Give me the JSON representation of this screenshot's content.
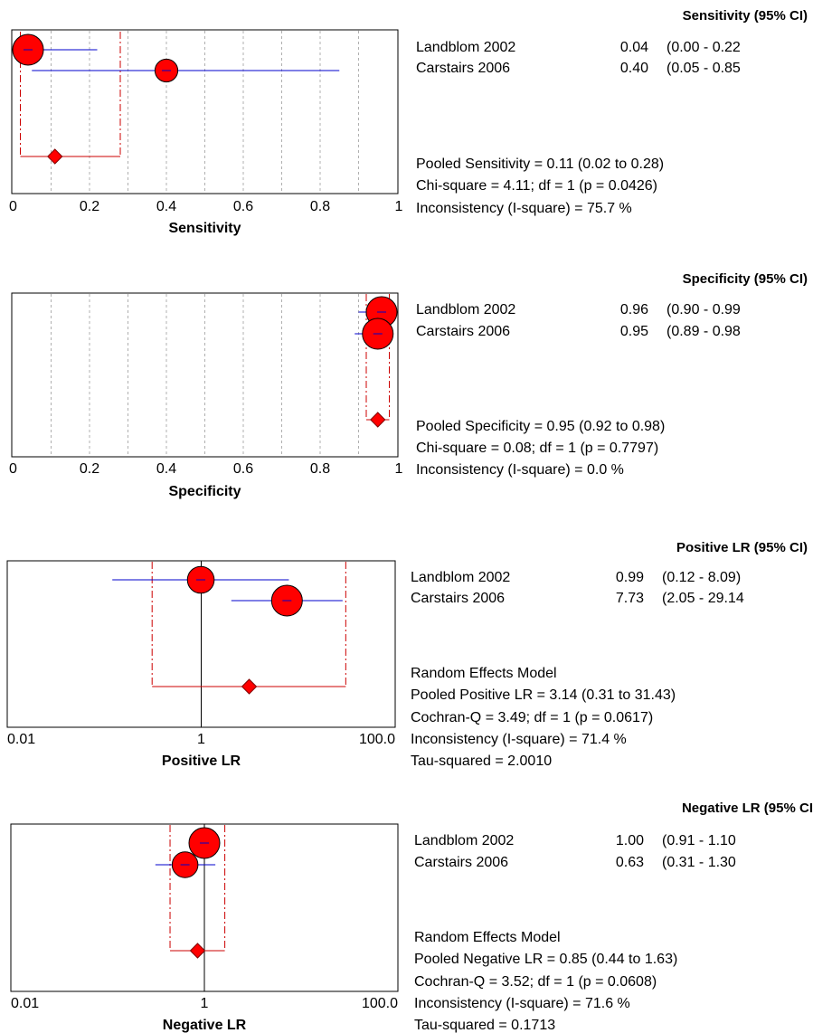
{
  "panels": [
    {
      "id": "sensitivity",
      "header": "Sensitivity (95% CI)",
      "studies": [
        {
          "name": "Landblom 2002",
          "value_text": "0.04",
          "ci_text": "(0.00 - 0.22"
        },
        {
          "name": "Carstairs 2006",
          "value_text": "0.40",
          "ci_text": "(0.05 - 0.85"
        }
      ],
      "summary_lines": [
        "Pooled Sensitivity = 0.11 (0.02 to 0.28)",
        "Chi-square = 4.11; df =  1 (p = 0.0426)",
        "Inconsistency (I-square) = 75.7 %"
      ]
    },
    {
      "id": "specificity",
      "header": "Specificity (95% CI)",
      "studies": [
        {
          "name": "Landblom 2002",
          "value_text": "0.96",
          "ci_text": "(0.90 - 0.99"
        },
        {
          "name": "Carstairs 2006",
          "value_text": "0.95",
          "ci_text": "(0.89 - 0.98"
        }
      ],
      "summary_lines": [
        "Pooled Specificity = 0.95 (0.92 to 0.98)",
        "Chi-square = 0.08; df =  1 (p = 0.7797)",
        "Inconsistency (I-square) = 0.0 %"
      ]
    },
    {
      "id": "positive-lr",
      "header": "Positive LR (95% CI)",
      "studies": [
        {
          "name": "Landblom 2002",
          "value_text": "0.99",
          "ci_text": "(0.12 - 8.09)"
        },
        {
          "name": "Carstairs 2006",
          "value_text": "7.73",
          "ci_text": "(2.05 - 29.14"
        }
      ],
      "summary_lines": [
        "Random Effects Model",
        "Pooled Positive LR = 3.14 (0.31 to 31.43)",
        "Cochran-Q = 3.49; df =  1 (p = 0.0617)",
        "Inconsistency (I-square) = 71.4 %",
        "Tau-squared = 2.0010"
      ]
    },
    {
      "id": "negative-lr",
      "header": "Negative LR (95% CI",
      "studies": [
        {
          "name": "Landblom 2002",
          "value_text": "1.00",
          "ci_text": "(0.91 - 1.10"
        },
        {
          "name": "Carstairs 2006",
          "value_text": "0.63",
          "ci_text": "(0.31 - 1.30"
        }
      ],
      "summary_lines": [
        "Random Effects Model",
        "Pooled Negative LR = 0.85 (0.44 to 1.63)",
        "Cochran-Q = 3.52; df =  1 (p = 0.0608)",
        "Inconsistency (I-square) = 71.6 %",
        "Tau-squared = 0.1713"
      ]
    }
  ],
  "colors": {
    "marker": "#ff0000",
    "ci_line": "#0000cc",
    "pooled": "#cc0000",
    "grid": "#b0b0b0"
  },
  "chart_data": [
    {
      "type": "forest",
      "xlabel": "Sensitivity",
      "xlim": [
        0,
        1
      ],
      "scale": "linear",
      "tick_labels": [
        "0",
        "0.2",
        "0.4",
        "0.6",
        "0.8",
        "1"
      ],
      "tick_values": [
        0,
        0.2,
        0.4,
        0.6,
        0.8,
        1
      ],
      "grid": true,
      "reference_line": null,
      "studies": [
        {
          "name": "Landblom 2002",
          "estimate": 0.04,
          "lower": 0.0,
          "upper": 0.22,
          "weight": 1.0
        },
        {
          "name": "Carstairs 2006",
          "estimate": 0.4,
          "lower": 0.05,
          "upper": 0.85,
          "weight": 0.6
        }
      ],
      "pooled": {
        "estimate": 0.11,
        "lower": 0.02,
        "upper": 0.28
      }
    },
    {
      "type": "forest",
      "xlabel": "Specificity",
      "xlim": [
        0,
        1
      ],
      "scale": "linear",
      "tick_labels": [
        "0",
        "0.2",
        "0.4",
        "0.6",
        "0.8",
        "1"
      ],
      "tick_values": [
        0,
        0.2,
        0.4,
        0.6,
        0.8,
        1
      ],
      "grid": true,
      "reference_line": null,
      "studies": [
        {
          "name": "Landblom 2002",
          "estimate": 0.96,
          "lower": 0.9,
          "upper": 0.99,
          "weight": 1.0
        },
        {
          "name": "Carstairs 2006",
          "estimate": 0.95,
          "lower": 0.89,
          "upper": 0.98,
          "weight": 1.0
        }
      ],
      "pooled": {
        "estimate": 0.95,
        "lower": 0.92,
        "upper": 0.98
      }
    },
    {
      "type": "forest",
      "xlabel": "Positive LR",
      "xlim": [
        0.01,
        100
      ],
      "scale": "log",
      "tick_labels": [
        "0.01",
        "1",
        "100.0"
      ],
      "tick_values": [
        0.01,
        1,
        100
      ],
      "grid": false,
      "reference_line": 1,
      "studies": [
        {
          "name": "Landblom 2002",
          "estimate": 0.99,
          "lower": 0.12,
          "upper": 8.09,
          "weight": 0.8
        },
        {
          "name": "Carstairs 2006",
          "estimate": 7.73,
          "lower": 2.05,
          "upper": 29.14,
          "weight": 1.0
        }
      ],
      "pooled": {
        "estimate": 3.14,
        "lower": 0.31,
        "upper": 31.43
      }
    },
    {
      "type": "forest",
      "xlabel": "Negative LR",
      "xlim": [
        0.01,
        100
      ],
      "scale": "log",
      "tick_labels": [
        "0.01",
        "1",
        "100.0"
      ],
      "tick_values": [
        0.01,
        1,
        100
      ],
      "grid": false,
      "reference_line": 1,
      "studies": [
        {
          "name": "Landblom 2002",
          "estimate": 1.0,
          "lower": 0.91,
          "upper": 1.1,
          "weight": 1.0
        },
        {
          "name": "Carstairs 2006",
          "estimate": 0.63,
          "lower": 0.31,
          "upper": 1.3,
          "weight": 0.75
        }
      ],
      "pooled": {
        "estimate": 0.85,
        "lower": 0.44,
        "upper": 1.63
      }
    }
  ]
}
